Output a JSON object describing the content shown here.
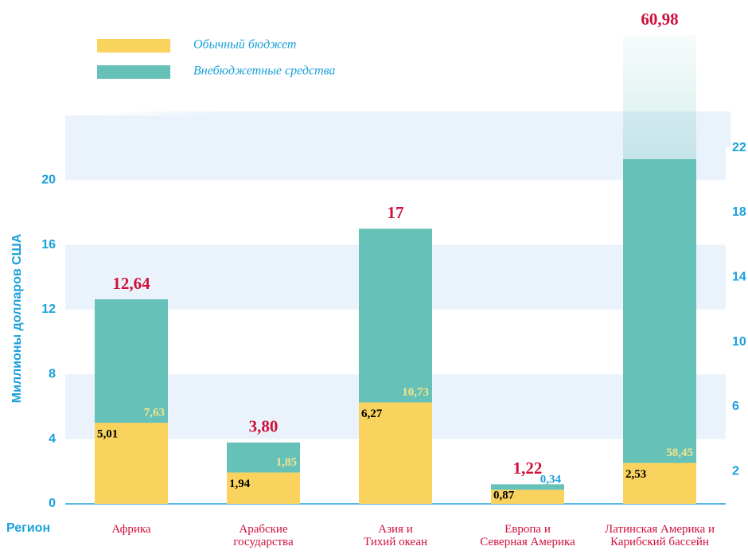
{
  "chart_data": {
    "type": "stacked_bar",
    "y_label": "Миллионы долларов США",
    "x_label": "Регион",
    "categories": [
      "Африка",
      "Арабские\nгосударства",
      "Азия и\nТихий океан",
      "Европа и\nСеверная Америка",
      "Латинская Америка и\nКарибский бассейн"
    ],
    "series": [
      {
        "name": "Обычный бюджет",
        "color": "#f9d35e",
        "values": [
          5.01,
          1.94,
          6.27,
          0.87,
          2.53
        ],
        "value_labels": [
          "5,01",
          "1,94",
          "6,27",
          "0,87",
          "2,53"
        ]
      },
      {
        "name": "Внебюджетные средства",
        "color": "#66c1b8",
        "values": [
          7.63,
          1.85,
          10.73,
          0.34,
          58.45
        ],
        "value_labels": [
          "7,63",
          "1,85",
          "10,73",
          "0,34",
          "58,45"
        ]
      }
    ],
    "totals": [
      12.64,
      3.8,
      17,
      1.22,
      60.98
    ],
    "total_labels": [
      "12,64",
      "3,80",
      "17",
      "1,22",
      "60,98"
    ],
    "ylim": [
      0,
      24
    ],
    "yticks": [
      0,
      4,
      8,
      12,
      16,
      20
    ],
    "y2lim": [
      0,
      24
    ],
    "y2ticks": [
      2,
      6,
      10,
      14,
      18,
      22
    ],
    "grid": true,
    "legend": "top-left"
  }
}
